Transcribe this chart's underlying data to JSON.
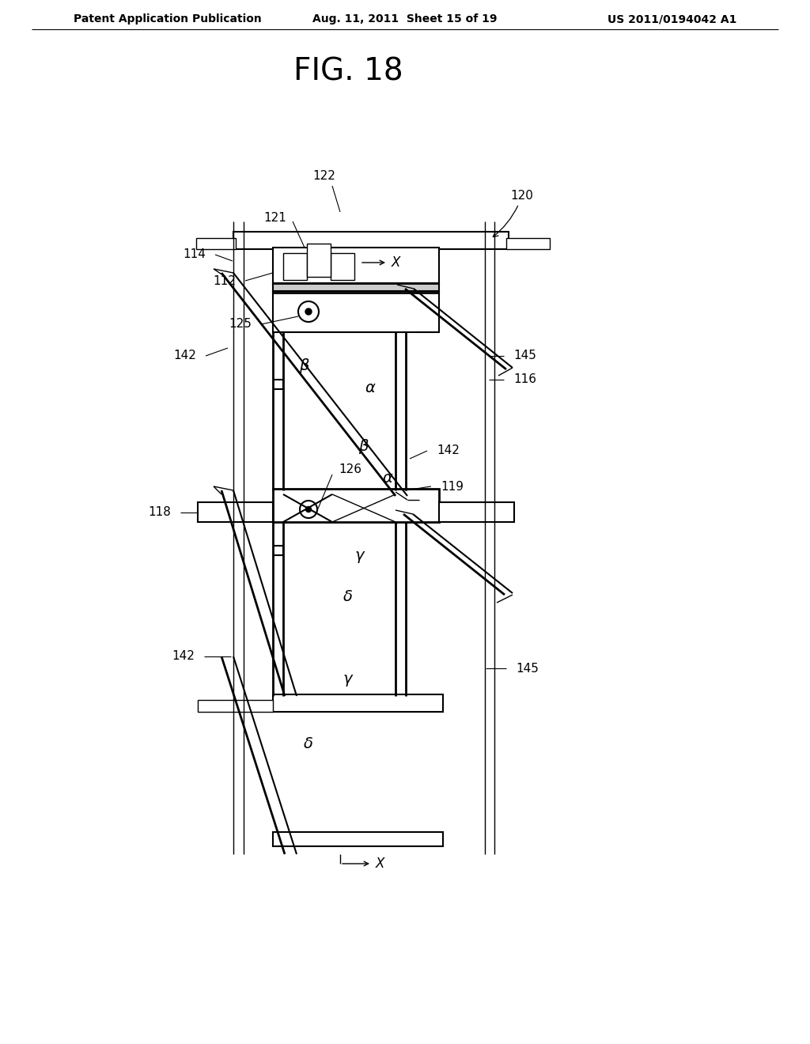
{
  "title": "FIG. 18",
  "header_left": "Patent Application Publication",
  "header_mid": "Aug. 11, 2011  Sheet 15 of 19",
  "header_right": "US 2011/0194042 A1",
  "bg_color": "#ffffff",
  "line_color": "#000000",
  "fig_title_fontsize": 28,
  "header_fontsize": 11,
  "label_fontsize": 11
}
